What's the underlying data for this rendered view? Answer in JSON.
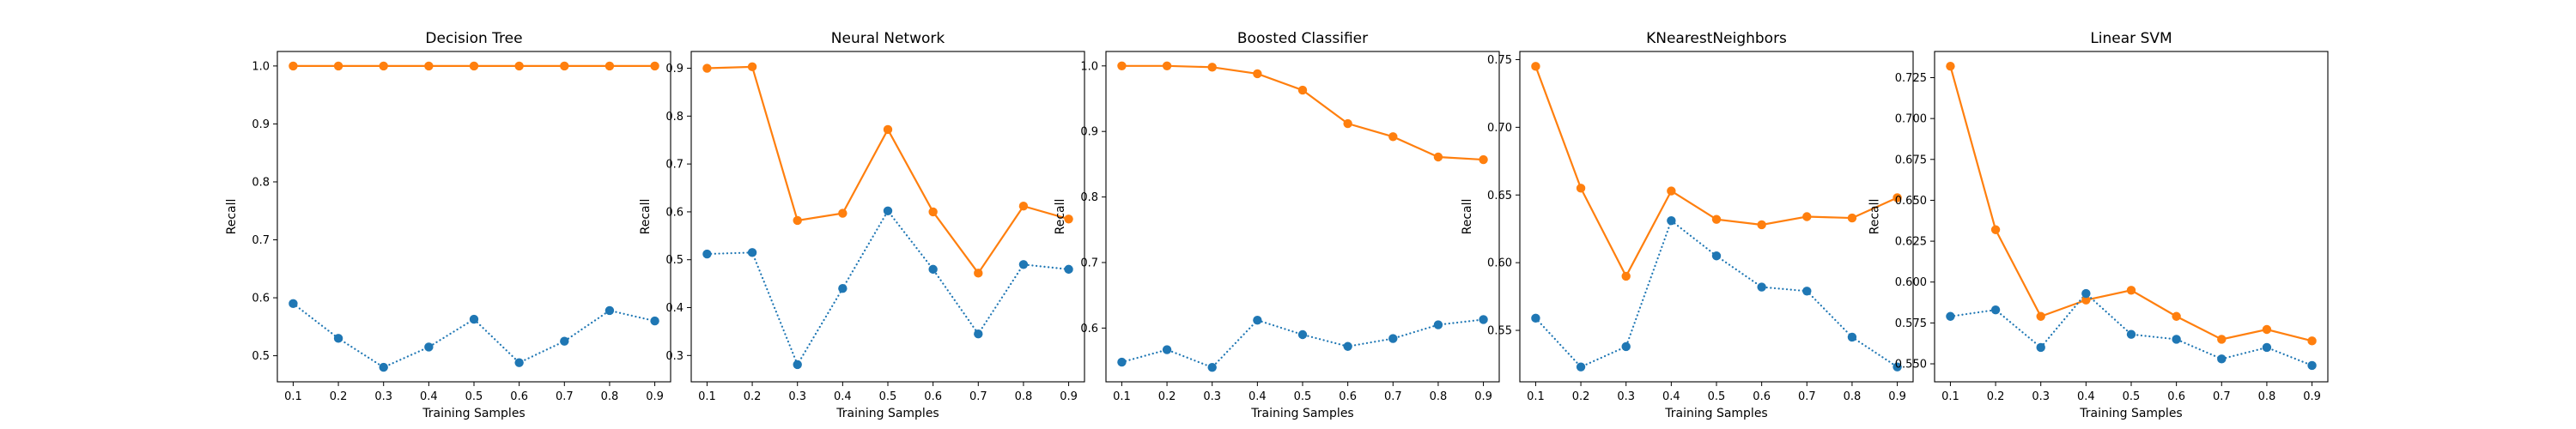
{
  "colors": {
    "validation": "#ff7f0e",
    "training": "#1f77b4",
    "axis": "#000000"
  },
  "chart_data": [
    {
      "type": "line",
      "title": "Decision Tree",
      "xlabel": "Training Samples",
      "ylabel": "Recall",
      "x": [
        0.1,
        0.2,
        0.3,
        0.4,
        0.5,
        0.6,
        0.7,
        0.8,
        0.9
      ],
      "xticks": [
        "0.1",
        "0.2",
        "0.3",
        "0.4",
        "0.5",
        "0.6",
        "0.7",
        "0.8",
        "0.9"
      ],
      "ylim": [
        0.455,
        1.025
      ],
      "yticks": [
        "0.5",
        "0.6",
        "0.7",
        "0.8",
        "0.9",
        "1.0"
      ],
      "series": [
        {
          "style": "solid",
          "color": "#ff7f0e",
          "values": [
            1.0,
            1.0,
            1.0,
            1.0,
            1.0,
            1.0,
            1.0,
            1.0,
            1.0
          ]
        },
        {
          "style": "dotted",
          "color": "#1f77b4",
          "values": [
            0.59,
            0.53,
            0.48,
            0.515,
            0.563,
            0.488,
            0.525,
            0.578,
            0.56
          ]
        }
      ]
    },
    {
      "type": "line",
      "title": "Neural Network",
      "xlabel": "Training Samples",
      "ylabel": "Recall",
      "x": [
        0.1,
        0.2,
        0.3,
        0.4,
        0.5,
        0.6,
        0.7,
        0.8,
        0.9
      ],
      "xticks": [
        "0.1",
        "0.2",
        "0.3",
        "0.4",
        "0.5",
        "0.6",
        "0.7",
        "0.8",
        "0.9"
      ],
      "ylim": [
        0.245,
        0.935
      ],
      "yticks": [
        "0.3",
        "0.4",
        "0.5",
        "0.6",
        "0.7",
        "0.8",
        "0.9"
      ],
      "series": [
        {
          "style": "solid",
          "color": "#ff7f0e",
          "values": [
            0.9,
            0.903,
            0.582,
            0.597,
            0.772,
            0.6,
            0.472,
            0.612,
            0.585
          ]
        },
        {
          "style": "dotted",
          "color": "#1f77b4",
          "values": [
            0.512,
            0.515,
            0.281,
            0.44,
            0.602,
            0.48,
            0.345,
            0.49,
            0.48
          ]
        }
      ]
    },
    {
      "type": "line",
      "title": "Boosted Classifier",
      "xlabel": "Training Samples",
      "ylabel": "Recall",
      "x": [
        0.1,
        0.2,
        0.3,
        0.4,
        0.5,
        0.6,
        0.7,
        0.8,
        0.9
      ],
      "xticks": [
        "0.1",
        "0.2",
        "0.3",
        "0.4",
        "0.5",
        "0.6",
        "0.7",
        "0.8",
        "0.9"
      ],
      "ylim": [
        0.518,
        1.022
      ],
      "yticks": [
        "0.6",
        "0.7",
        "0.8",
        "0.9",
        "1.0"
      ],
      "series": [
        {
          "style": "solid",
          "color": "#ff7f0e",
          "values": [
            1.0,
            1.0,
            0.998,
            0.988,
            0.963,
            0.912,
            0.892,
            0.861,
            0.857
          ]
        },
        {
          "style": "dotted",
          "color": "#1f77b4",
          "values": [
            0.548,
            0.567,
            0.54,
            0.612,
            0.59,
            0.572,
            0.584,
            0.605,
            0.613
          ]
        }
      ]
    },
    {
      "type": "line",
      "title": "KNearestNeighbors",
      "xlabel": "Training Samples",
      "ylabel": "Recall",
      "x": [
        0.1,
        0.2,
        0.3,
        0.4,
        0.5,
        0.6,
        0.7,
        0.8,
        0.9
      ],
      "xticks": [
        "0.1",
        "0.2",
        "0.3",
        "0.4",
        "0.5",
        "0.6",
        "0.7",
        "0.8",
        "0.9"
      ],
      "ylim": [
        0.512,
        0.756
      ],
      "yticks": [
        "0.55",
        "0.60",
        "0.65",
        "0.70",
        "0.75"
      ],
      "series": [
        {
          "style": "solid",
          "color": "#ff7f0e",
          "values": [
            0.745,
            0.655,
            0.59,
            0.653,
            0.632,
            0.628,
            0.634,
            0.633,
            0.648
          ]
        },
        {
          "style": "dotted",
          "color": "#1f77b4",
          "values": [
            0.559,
            0.523,
            0.538,
            0.631,
            0.605,
            0.582,
            0.579,
            0.545,
            0.523
          ]
        }
      ]
    },
    {
      "type": "line",
      "title": "Linear SVM",
      "xlabel": "Training Samples",
      "ylabel": "Recall",
      "x": [
        0.1,
        0.2,
        0.3,
        0.4,
        0.5,
        0.6,
        0.7,
        0.8,
        0.9
      ],
      "xticks": [
        "0.1",
        "0.2",
        "0.3",
        "0.4",
        "0.5",
        "0.6",
        "0.7",
        "0.8",
        "0.9"
      ],
      "ylim": [
        0.539,
        0.741
      ],
      "yticks": [
        "0.550",
        "0.575",
        "0.600",
        "0.625",
        "0.650",
        "0.675",
        "0.700",
        "0.725"
      ],
      "series": [
        {
          "style": "solid",
          "color": "#ff7f0e",
          "values": [
            0.732,
            0.632,
            0.579,
            0.589,
            0.595,
            0.579,
            0.565,
            0.571,
            0.564
          ]
        },
        {
          "style": "dotted",
          "color": "#1f77b4",
          "values": [
            0.579,
            0.583,
            0.56,
            0.593,
            0.568,
            0.565,
            0.553,
            0.56,
            0.549
          ]
        }
      ]
    }
  ]
}
